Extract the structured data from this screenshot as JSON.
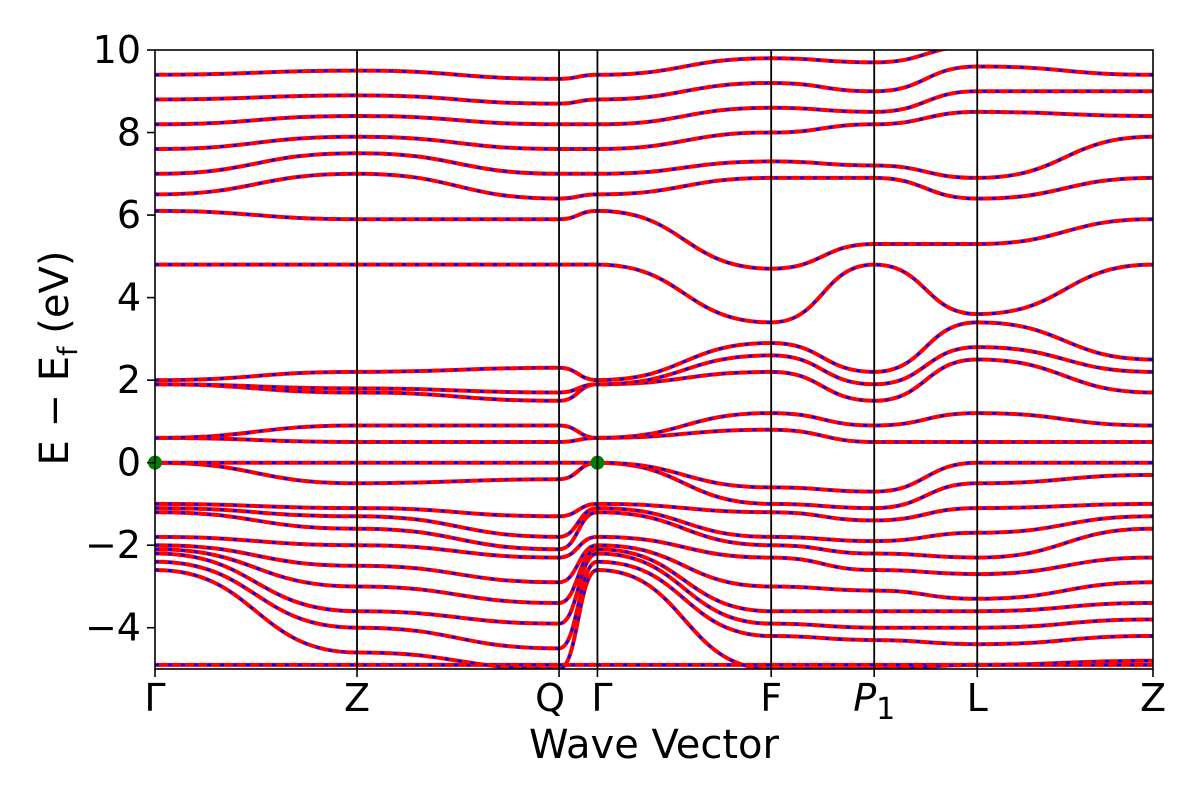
{
  "chart_data": {
    "type": "line",
    "xlabel": "Wave Vector",
    "ylabel": "E − E",
    "ylabel_sub": "f",
    "ylabel_unit": " (eV)",
    "ylim": [
      -5,
      10
    ],
    "yticks": [
      -4,
      -2,
      0,
      2,
      4,
      6,
      8,
      10
    ],
    "ytick_labels": [
      "−4",
      "−2",
      "0",
      "2",
      "4",
      "6",
      "8",
      "10"
    ],
    "kpath": [
      {
        "label": "Γ",
        "x": 0.0
      },
      {
        "label": "Z",
        "x": 1.0
      },
      {
        "label": "Q",
        "x": 2.0
      },
      {
        "label": "Γ",
        "x": 2.19
      },
      {
        "label": "F",
        "x": 3.05
      },
      {
        "label": "P₁",
        "x": 3.56
      },
      {
        "label": "L",
        "x": 4.07
      },
      {
        "label": "Z",
        "x": 4.94
      }
    ],
    "xlim": [
      0,
      4.94
    ],
    "grid": false,
    "colors": {
      "dft_bands": "#0000ff",
      "wannier_bands": "#ff0000",
      "marker": "#008000"
    },
    "highlight_points": [
      {
        "x": 0.0,
        "y": 0.0
      },
      {
        "x": 2.19,
        "y": 0.0
      }
    ],
    "bands_at_nodes": [
      [
        -4.9,
        -4.9,
        -4.9,
        -4.9,
        -4.9,
        -4.9,
        -4.9,
        -4.9
      ],
      [
        -2.6,
        -4.6,
        -5.0,
        -2.6,
        -5.0,
        -5.0,
        -4.9,
        -4.8
      ],
      [
        -2.4,
        -4.0,
        -4.5,
        -2.4,
        -4.2,
        -4.3,
        -4.4,
        -4.2
      ],
      [
        -2.2,
        -3.6,
        -3.9,
        -2.2,
        -3.9,
        -4.0,
        -4.0,
        -3.8
      ],
      [
        -2.1,
        -3.0,
        -3.4,
        -2.1,
        -3.6,
        -3.6,
        -3.6,
        -3.4
      ],
      [
        -2.0,
        -2.5,
        -2.9,
        -2.0,
        -3.0,
        -3.1,
        -3.3,
        -2.9
      ],
      [
        -1.8,
        -2.0,
        -2.3,
        -1.8,
        -2.3,
        -2.6,
        -2.7,
        -2.3
      ],
      [
        -1.2,
        -1.6,
        -2.1,
        -1.2,
        -2.0,
        -2.2,
        -2.3,
        -1.6
      ],
      [
        -1.1,
        -1.3,
        -1.8,
        -1.1,
        -1.8,
        -1.9,
        -1.7,
        -1.3
      ],
      [
        -1.0,
        -1.1,
        -1.3,
        -1.0,
        -1.2,
        -1.4,
        -1.1,
        -1.0
      ],
      [
        0.0,
        -0.5,
        -0.4,
        0.0,
        -1.0,
        -1.1,
        -0.5,
        -0.3
      ],
      [
        0.0,
        0.0,
        0.0,
        0.0,
        -0.6,
        -0.7,
        0.0,
        0.0
      ],
      [
        0.6,
        0.5,
        0.5,
        0.6,
        0.8,
        0.5,
        0.5,
        0.5
      ],
      [
        0.6,
        0.9,
        0.9,
        0.6,
        1.2,
        0.9,
        1.2,
        0.9
      ],
      [
        1.9,
        1.7,
        1.5,
        1.9,
        2.2,
        1.5,
        2.5,
        1.7
      ],
      [
        1.9,
        1.8,
        1.7,
        1.9,
        2.6,
        1.9,
        2.8,
        2.2
      ],
      [
        2.0,
        2.2,
        2.3,
        2.0,
        2.9,
        2.2,
        3.4,
        2.5
      ],
      [
        4.8,
        4.8,
        4.8,
        4.8,
        3.4,
        4.8,
        3.6,
        4.8
      ],
      [
        6.1,
        5.9,
        5.9,
        6.1,
        4.7,
        5.3,
        5.3,
        5.9
      ],
      [
        6.5,
        7.0,
        6.4,
        6.5,
        6.9,
        6.9,
        6.4,
        6.9
      ],
      [
        7.0,
        7.5,
        7.0,
        7.0,
        7.3,
        7.2,
        6.9,
        7.9
      ],
      [
        7.6,
        7.9,
        7.6,
        7.6,
        8.0,
        8.2,
        8.5,
        8.4
      ],
      [
        8.2,
        8.4,
        8.2,
        8.2,
        8.6,
        8.5,
        9.0,
        9.0
      ],
      [
        8.8,
        8.9,
        8.7,
        8.8,
        9.2,
        9.0,
        9.6,
        9.4
      ],
      [
        9.4,
        9.5,
        9.3,
        9.4,
        9.8,
        9.7,
        10.1,
        10.2
      ]
    ]
  }
}
